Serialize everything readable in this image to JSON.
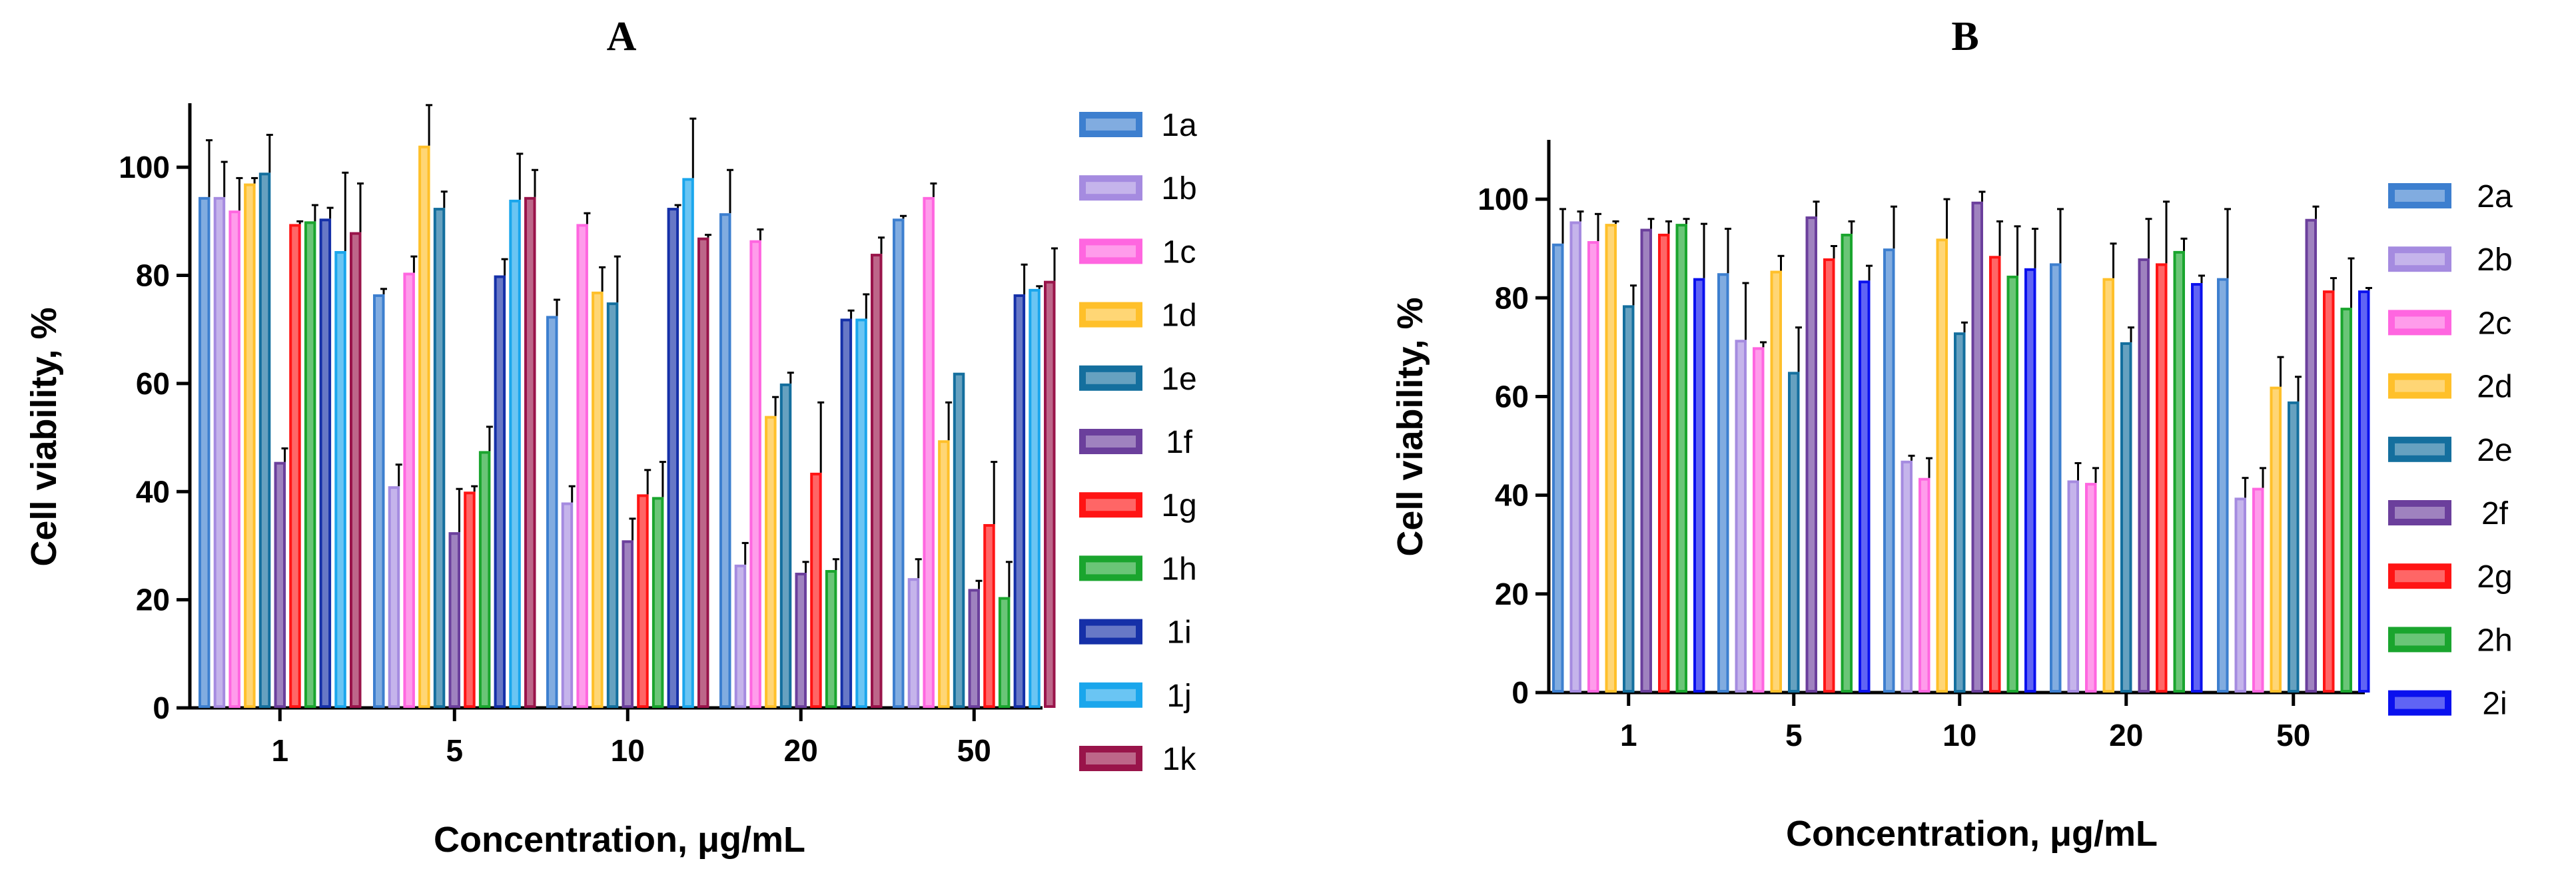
{
  "chart_data": [
    {
      "type": "bar",
      "panel": "A",
      "title": "A",
      "xlabel": "Concentration, μg/mL",
      "ylabel": "Cell viability, %",
      "ylim": [
        0,
        110
      ],
      "yticks": [
        0,
        20,
        40,
        60,
        80,
        100
      ],
      "categories": [
        "1",
        "5",
        "10",
        "20",
        "50"
      ],
      "legend_position": "right",
      "series": [
        {
          "name": "1a",
          "color": "#3d7fcf",
          "values": [
            94.5,
            76.5,
            72.5,
            91.5,
            90.5
          ],
          "errors": [
            10.5,
            1,
            3,
            8,
            0.5
          ]
        },
        {
          "name": "1b",
          "color": "#a58be0",
          "values": [
            94.5,
            41,
            38,
            26.5,
            24
          ],
          "errors": [
            6.5,
            4,
            3,
            4,
            3.5
          ]
        },
        {
          "name": "1c",
          "color": "#ff66e0",
          "values": [
            92,
            80.5,
            89.5,
            86.5,
            94.5
          ],
          "errors": [
            6,
            3,
            2,
            2,
            2.5
          ]
        },
        {
          "name": "1d",
          "color": "#ffc02a",
          "values": [
            97,
            104,
            77,
            54,
            49.5
          ],
          "errors": [
            1,
            7.5,
            4.5,
            3.5,
            7
          ]
        },
        {
          "name": "1e",
          "color": "#146f9e",
          "values": [
            99,
            92.5,
            75,
            60,
            62
          ],
          "errors": [
            7,
            3,
            8.5,
            2,
            0
          ]
        },
        {
          "name": "1f",
          "color": "#6b3f9c",
          "values": [
            45.5,
            32.5,
            31,
            25,
            22
          ],
          "errors": [
            2.5,
            8,
            4,
            2,
            1.5
          ]
        },
        {
          "name": "1g",
          "color": "#ff1414",
          "values": [
            89.5,
            40,
            39.5,
            43.5,
            34
          ],
          "errors": [
            0.5,
            1,
            4.5,
            13,
            11.5
          ]
        },
        {
          "name": "1h",
          "color": "#1aa52e",
          "values": [
            90,
            47.5,
            39,
            25.5,
            20.5
          ],
          "errors": [
            3,
            4.5,
            6.5,
            2,
            6.5
          ]
        },
        {
          "name": "1i",
          "color": "#1530a8",
          "values": [
            90.5,
            80,
            92.5,
            72,
            76.5
          ],
          "errors": [
            2,
            3,
            0.5,
            1.5,
            5.5
          ]
        },
        {
          "name": "1j",
          "color": "#1aa6ec",
          "values": [
            84.5,
            94,
            98,
            72,
            77.5
          ],
          "errors": [
            14.5,
            8.5,
            11,
            4.5,
            0.5
          ]
        },
        {
          "name": "1k",
          "color": "#99144a",
          "values": [
            88,
            94.5,
            87,
            84,
            79
          ],
          "errors": [
            9,
            5,
            0.5,
            3,
            6
          ]
        }
      ]
    },
    {
      "type": "bar",
      "panel": "B",
      "title": "B",
      "xlabel": "Concentration, μg/mL",
      "ylabel": "Cell viability, %",
      "ylim": [
        0,
        110
      ],
      "yticks": [
        0,
        20,
        40,
        60,
        80,
        100
      ],
      "categories": [
        "1",
        "5",
        "10",
        "20",
        "50"
      ],
      "legend_position": "right",
      "series": [
        {
          "name": "2a",
          "color": "#3d7fcf",
          "values": [
            91,
            85,
            90,
            87,
            84
          ],
          "errors": [
            7,
            9,
            8.5,
            11,
            14
          ]
        },
        {
          "name": "2b",
          "color": "#a58be0",
          "values": [
            95.5,
            71.5,
            47,
            43,
            39.5
          ],
          "errors": [
            2,
            11.5,
            1,
            3.5,
            4
          ]
        },
        {
          "name": "2c",
          "color": "#ff66e0",
          "values": [
            91.5,
            70,
            43.5,
            42.5,
            41.5
          ],
          "errors": [
            5.5,
            1,
            4,
            3,
            4
          ]
        },
        {
          "name": "2d",
          "color": "#ffc02a",
          "values": [
            95,
            85.5,
            92,
            84,
            62
          ],
          "errors": [
            0.5,
            3,
            8,
            7,
            6
          ]
        },
        {
          "name": "2e",
          "color": "#146f9e",
          "values": [
            78.5,
            65,
            73,
            71,
            59
          ],
          "errors": [
            4,
            9,
            2,
            3,
            5
          ]
        },
        {
          "name": "2f",
          "color": "#6b3f9c",
          "values": [
            94,
            96.5,
            99.5,
            88,
            96
          ],
          "errors": [
            2,
            3,
            2,
            8,
            2.5
          ]
        },
        {
          "name": "2g",
          "color": "#ff1414",
          "values": [
            93,
            88,
            88.5,
            87,
            81.5
          ],
          "errors": [
            2.5,
            2.5,
            7,
            12.5,
            2.5
          ]
        },
        {
          "name": "2h",
          "color": "#1aa52e",
          "values": [
            95,
            93,
            84.5,
            89.5,
            78
          ],
          "errors": [
            1,
            2.5,
            10,
            2.5,
            10
          ]
        },
        {
          "name": "2i",
          "color": "#0a10ee",
          "values": [
            84,
            83.5,
            86,
            83,
            81.5
          ],
          "errors": [
            11,
            3,
            8,
            1.5,
            0.5
          ]
        }
      ]
    }
  ]
}
